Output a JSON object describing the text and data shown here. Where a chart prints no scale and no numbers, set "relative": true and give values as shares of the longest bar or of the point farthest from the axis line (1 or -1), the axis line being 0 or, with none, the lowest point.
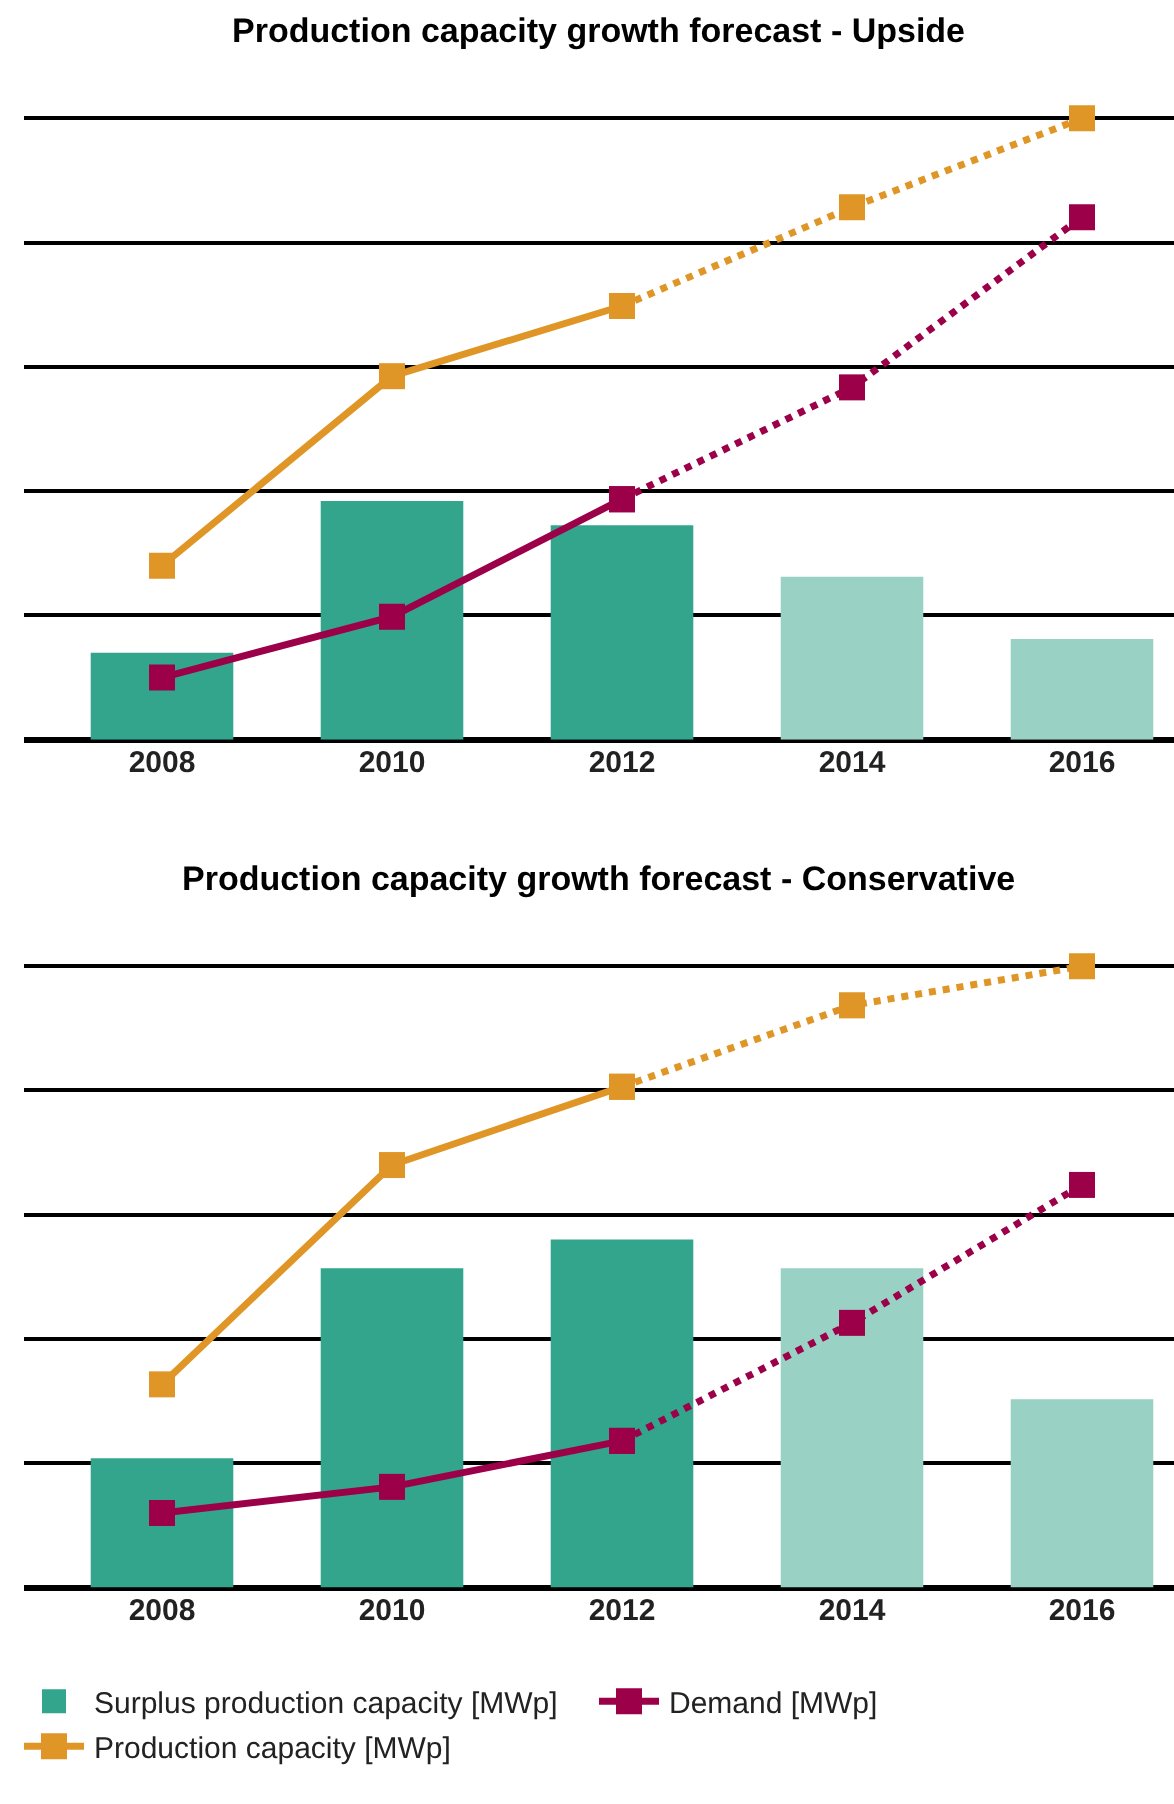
{
  "chart_data": [
    {
      "type": "bar",
      "title": "Production capacity growth forecast - Upside",
      "relative": true,
      "categories": [
        "2008",
        "2010",
        "2012",
        "2014",
        "2016"
      ],
      "grid": "y",
      "legend": false,
      "marker": "square",
      "series": [
        {
          "colors": [
            "#33a58c",
            "#33a58c",
            "#33a58c",
            "#99d1c5",
            "#99d1c5"
          ],
          "values": [
            0.14,
            0.384,
            0.345,
            0.262,
            0.162
          ]
        },
        {
          "type": "line",
          "color": "#9b0049",
          "line_style": "solid",
          "values": [
            0.1,
            0.198,
            0.387,
            null,
            null
          ]
        },
        {
          "type": "line",
          "color": "#9b0049",
          "line_style": "dotted",
          "values": [
            null,
            null,
            0.387,
            0.567,
            0.841
          ]
        },
        {
          "type": "line",
          "color": "#df9626",
          "line_style": "solid",
          "values": [
            0.28,
            0.585,
            0.698,
            null,
            null
          ]
        },
        {
          "type": "line",
          "color": "#df9626",
          "line_style": "dotted",
          "values": [
            null,
            null,
            0.698,
            0.857,
            1.0
          ]
        }
      ]
    },
    {
      "type": "bar",
      "title": "Production capacity growth forecast - Conservative",
      "relative": true,
      "categories": [
        "2008",
        "2010",
        "2012",
        "2014",
        "2016"
      ],
      "grid": "y",
      "legend": "bottom",
      "marker": "square",
      "series": [
        {
          "name": "Surplus production capacity [MWp]",
          "colors": [
            "#33a58c",
            "#33a58c",
            "#33a58c",
            "#99d1c5",
            "#99d1c5"
          ],
          "values": [
            0.208,
            0.514,
            0.56,
            0.514,
            0.303
          ]
        },
        {
          "type": "line",
          "name": "Demand [MWp]",
          "color": "#9b0049",
          "line_style": "solid",
          "values": [
            0.12,
            0.162,
            0.236,
            null,
            null
          ]
        },
        {
          "type": "line",
          "color": "#9b0049",
          "line_style": "dotted",
          "values": [
            null,
            null,
            0.236,
            0.426,
            0.648
          ]
        },
        {
          "type": "line",
          "name": "Production capacity [MWp]",
          "color": "#df9626",
          "line_style": "solid",
          "values": [
            0.327,
            0.68,
            0.806,
            null,
            null
          ]
        },
        {
          "type": "line",
          "color": "#df9626",
          "line_style": "dotted",
          "values": [
            null,
            null,
            0.806,
            0.937,
            1.0
          ]
        }
      ]
    }
  ]
}
